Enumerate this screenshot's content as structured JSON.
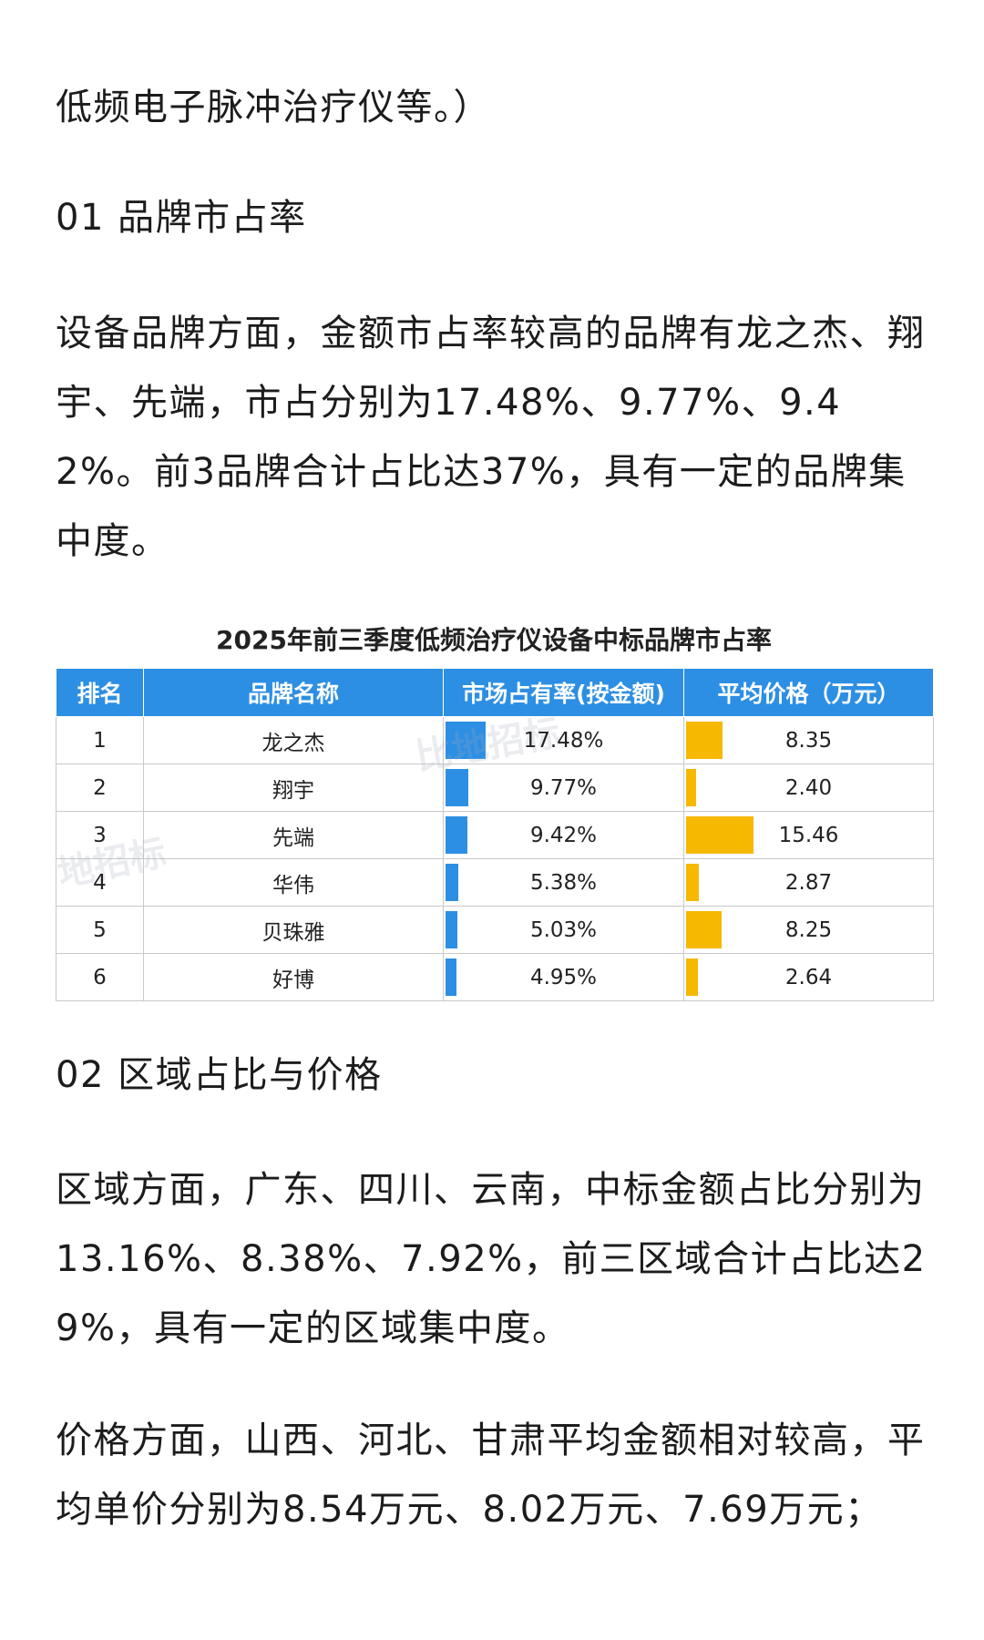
{
  "paragraphs": {
    "p0": "低频电子脉冲治疗仪等。）",
    "h1": "01 品牌市占率",
    "p1": "设备品牌方面，金额市占率较高的品牌有龙之杰、翔宇、先端，市占分别为17.48%、9.77%、9.42%。前3品牌合计占比达37%，具有一定的品牌集中度。",
    "h2": "02 区域占比与价格",
    "p2": "区域方面，广东、四川、云南，中标金额占比分别为13.16%、8.38%、7.92%，前三区域合计占比达29%，具有一定的区域集中度。",
    "p3": "价格方面，山西、河北、甘肃平均金额相对较高，平均单价分别为8.54万元、8.02万元、7.69万元；"
  },
  "table": {
    "title": "2025年前三季度低频治疗仪设备中标品牌市占率",
    "headers": [
      "排名",
      "品牌名称",
      "市场占有率(按金额)",
      "平均价格（万元）"
    ],
    "colors": {
      "header": "#2d8fe3",
      "share_bar": "#2d8fe3",
      "price_bar": "#f6b800"
    },
    "rows": [
      {
        "rank": "1",
        "brand": "龙之杰",
        "share": "17.48%",
        "price": "8.35"
      },
      {
        "rank": "2",
        "brand": "翔宇",
        "share": "9.77%",
        "price": "2.40"
      },
      {
        "rank": "3",
        "brand": "先端",
        "share": "9.42%",
        "price": "15.46"
      },
      {
        "rank": "4",
        "brand": "华伟",
        "share": "5.38%",
        "price": "2.87"
      },
      {
        "rank": "5",
        "brand": "贝珠雅",
        "share": "5.03%",
        "price": "8.25"
      },
      {
        "rank": "6",
        "brand": "好博",
        "share": "4.95%",
        "price": "2.64"
      }
    ]
  },
  "watermarks": {
    "brand_a": "比地招标",
    "brand_b": "地招标"
  }
}
